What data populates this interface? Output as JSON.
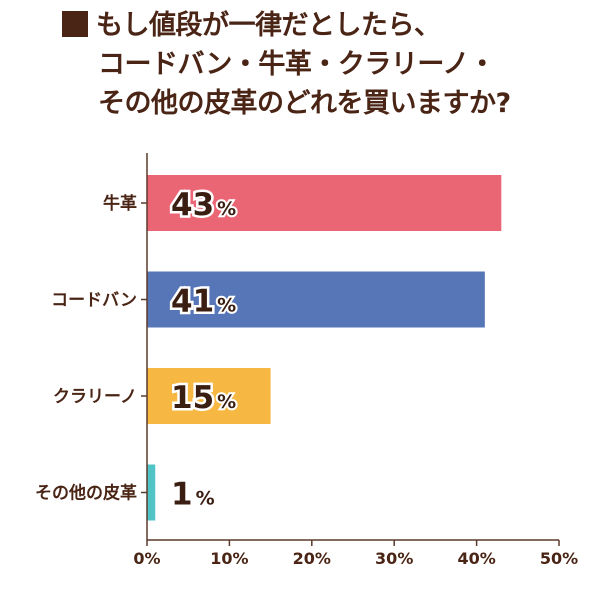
{
  "title_lines": [
    "もし値段が一律だとしたら、",
    "コードバン・牛革・クラリーノ・",
    "その他の皮革のどれを買いますか?"
  ],
  "chart_data": {
    "type": "bar",
    "orientation": "horizontal",
    "categories": [
      "牛革",
      "コードバン",
      "クラリーノ",
      "その他の皮革"
    ],
    "values": [
      43,
      41,
      15,
      1
    ],
    "value_labels": [
      "43",
      "41",
      "15",
      "1"
    ],
    "value_unit": "%",
    "colors": [
      "#eb6674",
      "#5676b8",
      "#f7b843",
      "#4fc3c6"
    ],
    "xlim": [
      0,
      50
    ],
    "xticks": [
      "0%",
      "10%",
      "20%",
      "30%",
      "40%",
      "50%"
    ],
    "grid": false
  }
}
